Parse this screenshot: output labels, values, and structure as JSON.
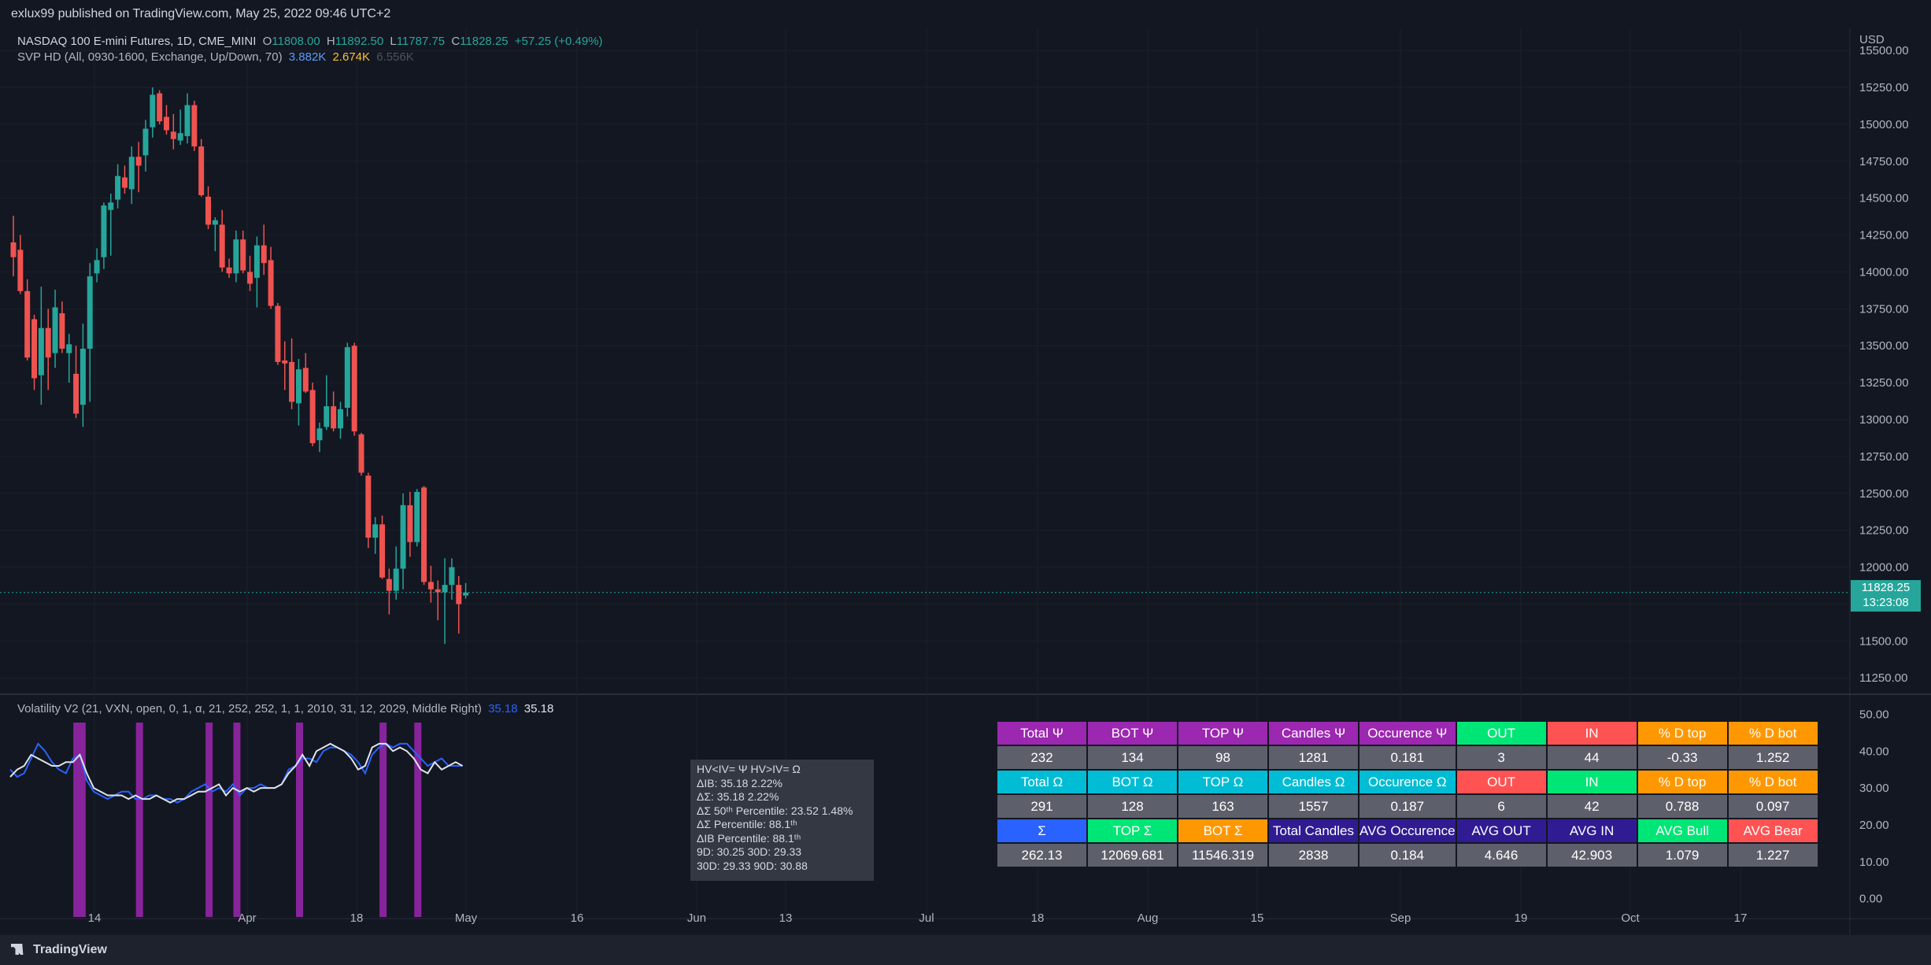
{
  "header": {
    "published": "exlux99 published on TradingView.com, May 25, 2022 09:46 UTC+2"
  },
  "legend_main": {
    "symbol": "NASDAQ 100 E-mini Futures, 1D, CME_MINI",
    "o_label": "O",
    "o_val": "11808.00",
    "h_label": "H",
    "h_val": "11892.50",
    "l_label": "L",
    "l_val": "11787.75",
    "c_label": "C",
    "c_val": "11828.25",
    "change": "+57.25 (+0.49%)"
  },
  "legend_svp": {
    "name": "SVP HD (All, 0930-1600, Exchange, Up/Down, 70)",
    "v1": "3.882K",
    "v2": "2.674K",
    "v3": "6.556K"
  },
  "legend_vol": {
    "name": "Volatility V2 (21, VXN, open, 0, 1, α, 21, 252, 252, 1, 1, 2010, 31, 12, 2029, Middle Right)",
    "v1": "35.18",
    "v2": "35.18"
  },
  "price_badge": {
    "price": "11828.25",
    "countdown": "13:23:08"
  },
  "currency": "USD",
  "footer": {
    "brand": "TradingView"
  },
  "colors": {
    "up": "#26a69a",
    "down": "#ef5350",
    "bg": "#131722",
    "purple": "#9c27b0",
    "hv_line": "#2962ff",
    "iv_line": "#e0e3eb"
  },
  "tooltip": {
    "lines": [
      "HV<IV= Ψ  HV>IV= Ω",
      "ΔIB: 35.18  2.22%",
      "ΔΣ: 35.18  2.22%",
      "ΔΣ 50ᵗʰ Percentile: 23.52  1.48%",
      "ΔΣ Percentile: 88.1ᵗʰ",
      "ΔIB Percentile: 88.1ᵗʰ",
      "9D: 30.25  30D: 29.33",
      "30D: 29.33  90D: 30.88"
    ]
  },
  "stats_table": {
    "rows": [
      [
        {
          "t": "Total Ψ",
          "bg": "#9c27b0",
          "fg": "#ffffff"
        },
        {
          "t": "BOT Ψ",
          "bg": "#9c27b0",
          "fg": "#ffffff"
        },
        {
          "t": "TOP Ψ",
          "bg": "#9c27b0",
          "fg": "#ffffff"
        },
        {
          "t": "Candles Ψ",
          "bg": "#9c27b0",
          "fg": "#ffffff"
        },
        {
          "t": "Occurence Ψ",
          "bg": "#9c27b0",
          "fg": "#ffffff"
        },
        {
          "t": "OUT",
          "bg": "#00e676",
          "fg": "#ffffff"
        },
        {
          "t": "IN",
          "bg": "#ff5252",
          "fg": "#ffffff"
        },
        {
          "t": "% D top",
          "bg": "#ff9800",
          "fg": "#ffffff"
        },
        {
          "t": "% D bot",
          "bg": "#ff9800",
          "fg": "#ffffff"
        }
      ],
      [
        {
          "t": "232"
        },
        {
          "t": "134"
        },
        {
          "t": "98"
        },
        {
          "t": "1281"
        },
        {
          "t": "0.181"
        },
        {
          "t": "3"
        },
        {
          "t": "44"
        },
        {
          "t": "-0.33"
        },
        {
          "t": "1.252"
        }
      ],
      [
        {
          "t": "Total Ω",
          "bg": "#00bcd4",
          "fg": "#ffffff"
        },
        {
          "t": "BOT Ω",
          "bg": "#00bcd4",
          "fg": "#ffffff"
        },
        {
          "t": "TOP Ω",
          "bg": "#00bcd4",
          "fg": "#ffffff"
        },
        {
          "t": "Candles Ω",
          "bg": "#00bcd4",
          "fg": "#ffffff"
        },
        {
          "t": "Occurence Ω",
          "bg": "#00bcd4",
          "fg": "#ffffff"
        },
        {
          "t": "OUT",
          "bg": "#ff5252",
          "fg": "#ffffff"
        },
        {
          "t": "IN",
          "bg": "#00e676",
          "fg": "#ffffff"
        },
        {
          "t": "% D top",
          "bg": "#ff9800",
          "fg": "#ffffff"
        },
        {
          "t": "% D bot",
          "bg": "#ff9800",
          "fg": "#ffffff"
        }
      ],
      [
        {
          "t": "291"
        },
        {
          "t": "128"
        },
        {
          "t": "163"
        },
        {
          "t": "1557"
        },
        {
          "t": "0.187"
        },
        {
          "t": "6"
        },
        {
          "t": "42"
        },
        {
          "t": "0.788"
        },
        {
          "t": "0.097"
        }
      ],
      [
        {
          "t": "Σ",
          "bg": "#2962ff",
          "fg": "#ffffff"
        },
        {
          "t": "TOP Σ",
          "bg": "#00e676",
          "fg": "#ffffff"
        },
        {
          "t": "BOT Σ",
          "bg": "#ff9800",
          "fg": "#ffffff"
        },
        {
          "t": "Total Candles",
          "bg": "#311b92",
          "fg": "#ffffff"
        },
        {
          "t": "AVG Occurence",
          "bg": "#311b92",
          "fg": "#ffffff"
        },
        {
          "t": "AVG OUT",
          "bg": "#311b92",
          "fg": "#ffffff"
        },
        {
          "t": "AVG IN",
          "bg": "#311b92",
          "fg": "#ffffff"
        },
        {
          "t": "AVG Bull",
          "bg": "#00e676",
          "fg": "#ffffff"
        },
        {
          "t": "AVG Bear",
          "bg": "#ff5252",
          "fg": "#ffffff"
        }
      ],
      [
        {
          "t": "262.13"
        },
        {
          "t": "12069.681"
        },
        {
          "t": "11546.319"
        },
        {
          "t": "2838"
        },
        {
          "t": "0.184"
        },
        {
          "t": "4.646"
        },
        {
          "t": "42.903"
        },
        {
          "t": "1.079"
        },
        {
          "t": "1.227"
        }
      ]
    ]
  },
  "chart_data": [
    {
      "type": "candlestick",
      "ylim": [
        11150,
        15650
      ],
      "y_ticks": [
        "11250.00",
        "11500.00",
        "11750.00",
        "12000.00",
        "12250.00",
        "12500.00",
        "12750.00",
        "13000.00",
        "13250.00",
        "13500.00",
        "13750.00",
        "14000.00",
        "14250.00",
        "14500.00",
        "14750.00",
        "15000.00",
        "15250.00",
        "15500.00"
      ],
      "x_ticks": [
        "14",
        "Apr",
        "18",
        "May",
        "16",
        "Jun",
        "13",
        "Jul",
        "18",
        "Aug",
        "15",
        "Sep",
        "19",
        "Oct",
        "17"
      ],
      "last_price": 11828.25,
      "candles": [
        {
          "o": 14200,
          "h": 14380,
          "l": 13970,
          "c": 14100
        },
        {
          "o": 14150,
          "h": 14250,
          "l": 13850,
          "c": 13870
        },
        {
          "o": 13870,
          "h": 13950,
          "l": 13400,
          "c": 13420
        },
        {
          "o": 13680,
          "h": 13710,
          "l": 13200,
          "c": 13280
        },
        {
          "o": 13300,
          "h": 13900,
          "l": 13100,
          "c": 13620
        },
        {
          "o": 13620,
          "h": 13750,
          "l": 13200,
          "c": 13420
        },
        {
          "o": 13450,
          "h": 13880,
          "l": 13350,
          "c": 13760
        },
        {
          "o": 13720,
          "h": 13800,
          "l": 13450,
          "c": 13480
        },
        {
          "o": 13450,
          "h": 13580,
          "l": 13250,
          "c": 13510
        },
        {
          "o": 13310,
          "h": 13500,
          "l": 13010,
          "c": 13040
        },
        {
          "o": 13100,
          "h": 13650,
          "l": 12950,
          "c": 13480
        },
        {
          "o": 13480,
          "h": 14060,
          "l": 13120,
          "c": 13970
        },
        {
          "o": 13990,
          "h": 14160,
          "l": 13930,
          "c": 14080
        },
        {
          "o": 14100,
          "h": 14470,
          "l": 14020,
          "c": 14450
        },
        {
          "o": 14420,
          "h": 14530,
          "l": 14110,
          "c": 14470
        },
        {
          "o": 14490,
          "h": 14730,
          "l": 14430,
          "c": 14650
        },
        {
          "o": 14640,
          "h": 14720,
          "l": 14530,
          "c": 14570
        },
        {
          "o": 14560,
          "h": 14850,
          "l": 14460,
          "c": 14780
        },
        {
          "o": 14780,
          "h": 14880,
          "l": 14540,
          "c": 14720
        },
        {
          "o": 14790,
          "h": 15030,
          "l": 14680,
          "c": 14970
        },
        {
          "o": 14980,
          "h": 15250,
          "l": 14910,
          "c": 15200
        },
        {
          "o": 15210,
          "h": 15230,
          "l": 15000,
          "c": 15020
        },
        {
          "o": 15050,
          "h": 15130,
          "l": 14930,
          "c": 14960
        },
        {
          "o": 14950,
          "h": 15070,
          "l": 14830,
          "c": 14900
        },
        {
          "o": 14890,
          "h": 15100,
          "l": 14860,
          "c": 14940
        },
        {
          "o": 14920,
          "h": 15210,
          "l": 14870,
          "c": 15130
        },
        {
          "o": 15130,
          "h": 15160,
          "l": 14820,
          "c": 14850
        },
        {
          "o": 14850,
          "h": 14900,
          "l": 14510,
          "c": 14520
        },
        {
          "o": 14510,
          "h": 14580,
          "l": 14290,
          "c": 14320
        },
        {
          "o": 14320,
          "h": 14370,
          "l": 14140,
          "c": 14350
        },
        {
          "o": 14320,
          "h": 14420,
          "l": 14000,
          "c": 14030
        },
        {
          "o": 14030,
          "h": 14090,
          "l": 13960,
          "c": 13990
        },
        {
          "o": 13990,
          "h": 14280,
          "l": 13930,
          "c": 14220
        },
        {
          "o": 14220,
          "h": 14280,
          "l": 13990,
          "c": 14010
        },
        {
          "o": 14000,
          "h": 14110,
          "l": 13870,
          "c": 13920
        },
        {
          "o": 13960,
          "h": 14240,
          "l": 13760,
          "c": 14180
        },
        {
          "o": 14180,
          "h": 14320,
          "l": 13980,
          "c": 14060
        },
        {
          "o": 14080,
          "h": 14170,
          "l": 13750,
          "c": 13770
        },
        {
          "o": 13770,
          "h": 13790,
          "l": 13370,
          "c": 13390
        },
        {
          "o": 13400,
          "h": 13530,
          "l": 13200,
          "c": 13380
        },
        {
          "o": 13390,
          "h": 13550,
          "l": 13070,
          "c": 13120
        },
        {
          "o": 13110,
          "h": 13410,
          "l": 12960,
          "c": 13340
        },
        {
          "o": 13350,
          "h": 13450,
          "l": 13180,
          "c": 13190
        },
        {
          "o": 13200,
          "h": 13250,
          "l": 12820,
          "c": 12840
        },
        {
          "o": 12860,
          "h": 12980,
          "l": 12780,
          "c": 12940
        },
        {
          "o": 12950,
          "h": 13300,
          "l": 12930,
          "c": 13090
        },
        {
          "o": 13090,
          "h": 13190,
          "l": 12920,
          "c": 12940
        },
        {
          "o": 12940,
          "h": 13120,
          "l": 12870,
          "c": 13070
        },
        {
          "o": 13080,
          "h": 13520,
          "l": 13020,
          "c": 13490
        },
        {
          "o": 13500,
          "h": 13520,
          "l": 12890,
          "c": 12920
        },
        {
          "o": 12900,
          "h": 12910,
          "l": 12620,
          "c": 12640
        },
        {
          "o": 12620,
          "h": 12640,
          "l": 12130,
          "c": 12200
        },
        {
          "o": 12200,
          "h": 12340,
          "l": 12090,
          "c": 12290
        },
        {
          "o": 12290,
          "h": 12350,
          "l": 11920,
          "c": 11930
        },
        {
          "o": 11920,
          "h": 11990,
          "l": 11680,
          "c": 11840
        },
        {
          "o": 11840,
          "h": 12140,
          "l": 11780,
          "c": 11990
        },
        {
          "o": 11990,
          "h": 12500,
          "l": 11850,
          "c": 12420
        },
        {
          "o": 12420,
          "h": 12510,
          "l": 12070,
          "c": 12170
        },
        {
          "o": 12170,
          "h": 12530,
          "l": 12140,
          "c": 12510
        },
        {
          "o": 12540,
          "h": 12550,
          "l": 11880,
          "c": 11900
        },
        {
          "o": 11900,
          "h": 12010,
          "l": 11760,
          "c": 11850
        },
        {
          "o": 11850,
          "h": 11910,
          "l": 11640,
          "c": 11830
        },
        {
          "o": 11830,
          "h": 12060,
          "l": 11480,
          "c": 11880
        },
        {
          "o": 11880,
          "h": 12060,
          "l": 11780,
          "c": 12000
        },
        {
          "o": 11880,
          "h": 11940,
          "l": 11550,
          "c": 11750
        },
        {
          "o": 11808,
          "h": 11892.5,
          "l": 11787.75,
          "c": 11828.25
        }
      ]
    },
    {
      "type": "line",
      "ylim": [
        -5,
        55
      ],
      "y_ticks": [
        "0.00",
        "10.00",
        "20.00",
        "30.00",
        "40.00",
        "50.00"
      ],
      "series": [
        {
          "values": [
            35,
            33,
            34,
            38,
            42,
            40,
            37,
            35,
            34,
            38,
            39,
            32,
            29,
            28,
            27,
            28,
            29,
            29,
            27,
            27,
            28,
            28,
            27,
            27,
            26,
            27,
            29,
            30,
            31,
            29,
            30,
            29,
            31,
            28,
            30,
            30,
            31,
            30,
            30,
            31,
            35,
            36,
            38,
            38,
            37,
            40,
            41,
            41,
            40,
            39,
            37,
            34,
            39,
            41,
            42,
            41,
            42,
            42,
            40,
            38,
            36,
            37,
            38,
            36,
            36,
            36
          ]
        },
        {
          "values": [
            33,
            35,
            36,
            39,
            38,
            37,
            36,
            36,
            37,
            37,
            39,
            34,
            30,
            29,
            28,
            28,
            28,
            27,
            28,
            27,
            27,
            28,
            27,
            26,
            27,
            27,
            28,
            29,
            29,
            30,
            31,
            28,
            30,
            29,
            30,
            29,
            30,
            30,
            30,
            31,
            34,
            36,
            39,
            36,
            40,
            41,
            42,
            41,
            40,
            38,
            35,
            36,
            41,
            42,
            42,
            40,
            41,
            40,
            38,
            35,
            34,
            37,
            35,
            36,
            37,
            36
          ]
        }
      ],
      "highlight_bands": [
        [
          9,
          10
        ],
        [
          18
        ],
        [
          28
        ],
        [
          32
        ],
        [
          41
        ],
        [
          53
        ],
        [
          58
        ]
      ]
    }
  ]
}
